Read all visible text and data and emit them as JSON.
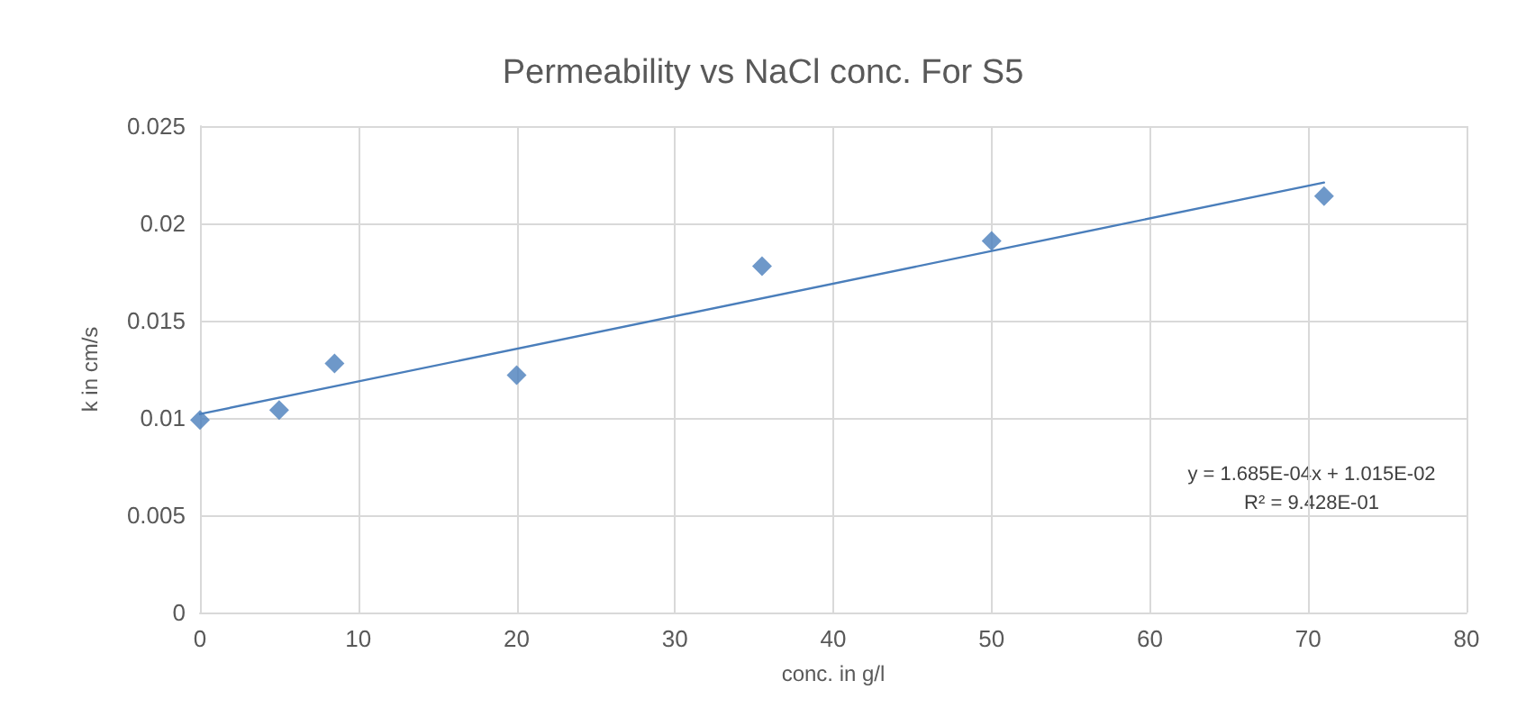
{
  "chart_data": {
    "type": "scatter",
    "title": "Permeability vs NaCl conc. For S5",
    "xlabel": "conc. in g/l",
    "ylabel": "k in cm/s",
    "x": [
      0,
      5,
      8.5,
      20,
      35.5,
      50,
      71
    ],
    "series": [
      {
        "color": "#4a7ebb",
        "values": [
          0.0099,
          0.0104,
          0.0128,
          0.0122,
          0.0178,
          0.0191,
          0.0214
        ],
        "marker": "diamond"
      },
      {
        "type": "line",
        "color": "#4a7ebb",
        "x": [
          0,
          71
        ],
        "values": [
          0.0102,
          0.0221
        ],
        "marker": "none",
        "line_style": "solid"
      }
    ],
    "annotations": [
      "y = 1.685E-04x + 1.015E-02",
      "R² = 9.428E-01"
    ],
    "xlim": [
      0,
      80
    ],
    "xticks": [
      0,
      10,
      20,
      30,
      40,
      50,
      60,
      70,
      80
    ],
    "ylim": [
      0,
      0.025
    ],
    "yticks": [
      0,
      0.005,
      0.01,
      0.015,
      0.02,
      0.025
    ],
    "grid": true
  }
}
